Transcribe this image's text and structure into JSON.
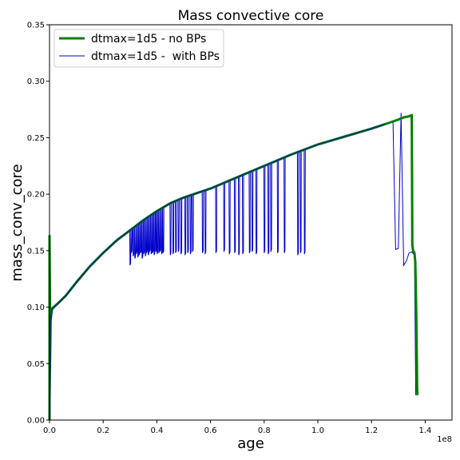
{
  "chart_data": {
    "type": "line",
    "title": "Mass convective core",
    "xlabel": "age",
    "ylabel": "mass_conv_core",
    "x_offset_label": "1e8",
    "xlim": [
      0,
      150000000
    ],
    "ylim": [
      0,
      0.35
    ],
    "x_ticks": [
      0,
      20000000,
      40000000,
      60000000,
      80000000,
      100000000,
      120000000,
      140000000
    ],
    "x_tick_labels": [
      "0.0",
      "0.2",
      "0.4",
      "0.6",
      "0.8",
      "1.0",
      "1.2",
      "1.4"
    ],
    "y_ticks": [
      0,
      0.05,
      0.1,
      0.15,
      0.2,
      0.25,
      0.3,
      0.35
    ],
    "y_tick_labels": [
      "0.00",
      "0.05",
      "0.10",
      "0.15",
      "0.20",
      "0.25",
      "0.30",
      "0.35"
    ],
    "grid": false,
    "legend_position": "top-left",
    "series": [
      {
        "name": "dtmax=1d5 - no BPs",
        "color": "#008000",
        "x": [
          0,
          0,
          200000,
          500000,
          1000000,
          3000000,
          6000000,
          10000000,
          15000000,
          20000000,
          25000000,
          30000000,
          35000000,
          40000000,
          45000000,
          50000000,
          55000000,
          60000000,
          70000000,
          80000000,
          90000000,
          100000000,
          110000000,
          120000000,
          125000000,
          130000000,
          132000000,
          134000000,
          135000000,
          135200000,
          135500000,
          136000000,
          136300000,
          136500000,
          136700000,
          136900000,
          137000000,
          137100000
        ],
        "y": [
          0,
          0.163,
          0.093,
          0.096,
          0.099,
          0.103,
          0.11,
          0.122,
          0.136,
          0.148,
          0.159,
          0.168,
          0.177,
          0.185,
          0.192,
          0.197,
          0.201,
          0.205,
          0.215,
          0.225,
          0.235,
          0.244,
          0.251,
          0.258,
          0.262,
          0.266,
          0.268,
          0.269,
          0.27,
          0.155,
          0.15,
          0.148,
          0.14,
          0.12,
          0.09,
          0.05,
          0.03,
          0.022
        ]
      },
      {
        "name": "dtmax=1d5 -  with BPs",
        "color": "#0000cc",
        "x": [
          0,
          500000,
          1000000,
          3000000,
          6000000,
          10000000,
          15000000,
          20000000,
          25000000,
          30000000,
          35000000,
          40000000,
          45000000,
          50000000,
          55000000,
          60000000,
          70000000,
          80000000,
          90000000,
          100000000,
          110000000,
          120000000,
          125000000,
          128000000,
          129000000,
          130000000,
          131000000,
          132000000,
          133000000,
          134000000,
          135000000,
          136000000,
          136500000
        ],
        "y": [
          0,
          0.089,
          0.098,
          0.103,
          0.11,
          0.122,
          0.136,
          0.148,
          0.159,
          0.168,
          0.177,
          0.185,
          0.192,
          0.197,
          0.201,
          0.205,
          0.215,
          0.225,
          0.235,
          0.244,
          0.251,
          0.258,
          0.262,
          0.264,
          0.151,
          0.152,
          0.272,
          0.137,
          0.141,
          0.148,
          0.149,
          0.146,
          0.022
        ],
        "dips_x": [
          30000000,
          30500000,
          31200000,
          31800000,
          32300000,
          32900000,
          33400000,
          34000000,
          34500000,
          35100000,
          35700000,
          36200000,
          36800000,
          37300000,
          37900000,
          38400000,
          39000000,
          39600000,
          40100000,
          40700000,
          41200000,
          41800000,
          42300000,
          45000000,
          46000000,
          47000000,
          48000000,
          49000000,
          50500000,
          51500000,
          52500000,
          53300000,
          57000000,
          58000000,
          62000000,
          65000000,
          67000000,
          69000000,
          70500000,
          72000000,
          74500000,
          75500000,
          77000000,
          80000000,
          81500000,
          82500000,
          85000000,
          87500000,
          92500000,
          93500000,
          95000000
        ],
        "dips_y": [
          0.137,
          0.148,
          0.145,
          0.143,
          0.147,
          0.144,
          0.146,
          0.148,
          0.143,
          0.147,
          0.145,
          0.148,
          0.146,
          0.149,
          0.147,
          0.148,
          0.146,
          0.149,
          0.147,
          0.148,
          0.149,
          0.147,
          0.148,
          0.146,
          0.147,
          0.148,
          0.149,
          0.147,
          0.146,
          0.148,
          0.147,
          0.149,
          0.148,
          0.147,
          0.148,
          0.149,
          0.147,
          0.148,
          0.146,
          0.147,
          0.148,
          0.149,
          0.147,
          0.148,
          0.147,
          0.149,
          0.148,
          0.148,
          0.146,
          0.148,
          0.147
        ]
      }
    ]
  }
}
